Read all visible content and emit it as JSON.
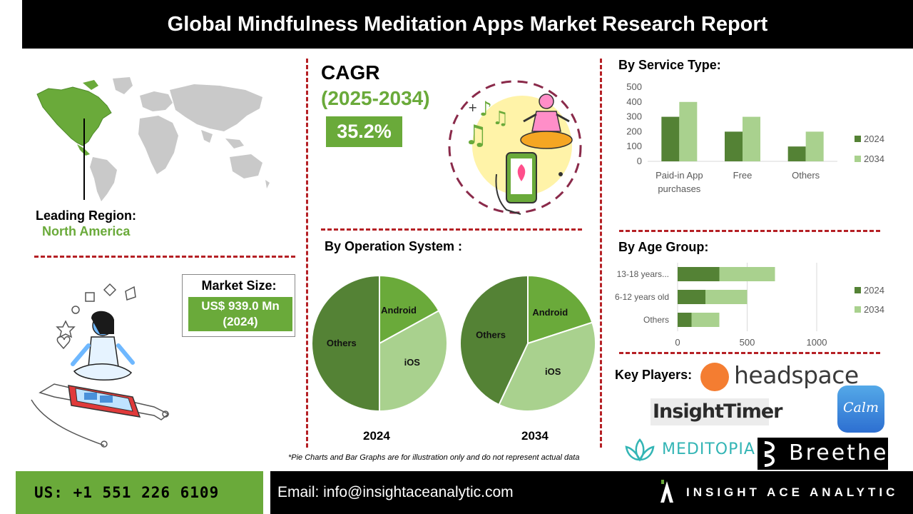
{
  "header": {
    "title": "Global Mindfulness Meditation Apps Market Research Report"
  },
  "cagr": {
    "label": "CAGR",
    "period": "(2025-2034)",
    "value": "35.2%"
  },
  "region": {
    "label": "Leading Region:",
    "value": "North America"
  },
  "market_size": {
    "label": "Market Size:",
    "value_line1": "US$ 939.0 Mn",
    "value_line2": "(2024)"
  },
  "sections": {
    "service_type": "By Service Type:",
    "operation_system": "By Operation System :",
    "age_group": "By Age Group:",
    "key_players": "Key Players:"
  },
  "note": "*Pie Charts and Bar Graphs are for illustration only and do not represent actual data",
  "footer": {
    "phone": "US: +1 551 226 6109",
    "email": "Email: info@insightaceanalytic.com",
    "brand": "INSIGHT ACE ANALYTIC"
  },
  "key_players": {
    "headspace": "headspace",
    "insight_timer": "InsightTimer",
    "calm": "Calm",
    "meditopia": "MEDITOPIA",
    "breethe": "Breethe"
  },
  "colors": {
    "dark_green": "#548235",
    "light_green": "#a9d18e",
    "accent_green": "#6aaa3a",
    "divider_red": "#b52025"
  },
  "chart_data": [
    {
      "type": "bar",
      "id": "service_type",
      "orientation": "vertical",
      "categories": [
        "Paid-in App purchases",
        "Free",
        "Others"
      ],
      "category_lines": [
        [
          "Paid-in App",
          "purchases"
        ],
        [
          "Free"
        ],
        [
          "Others"
        ]
      ],
      "series": [
        {
          "name": "2024",
          "values": [
            300,
            200,
            100
          ],
          "color": "#548235"
        },
        {
          "name": "2034",
          "values": [
            400,
            300,
            200
          ],
          "color": "#a9d18e"
        }
      ],
      "yticks": [
        0,
        100,
        200,
        300,
        400,
        500
      ],
      "ylim": [
        0,
        500
      ],
      "legend": "right"
    },
    {
      "type": "bar",
      "id": "age_group",
      "orientation": "horizontal-stacked",
      "categories": [
        "13-18 years...",
        "6-12 years old",
        "Others"
      ],
      "series": [
        {
          "name": "2024",
          "values": [
            300,
            200,
            100
          ],
          "color": "#548235"
        },
        {
          "name": "2034",
          "values": [
            400,
            300,
            200
          ],
          "color": "#a9d18e"
        }
      ],
      "xticks": [
        0,
        500,
        1000
      ],
      "xlim": [
        0,
        1000
      ],
      "legend": "right"
    },
    {
      "type": "pie",
      "id": "os_2024",
      "title": "2024",
      "slices": [
        {
          "label": "Android",
          "value": 17,
          "color": "#6aaa3a"
        },
        {
          "label": "iOS",
          "value": 33,
          "color": "#a9d18e"
        },
        {
          "label": "Others",
          "value": 50,
          "color": "#548235"
        }
      ]
    },
    {
      "type": "pie",
      "id": "os_2034",
      "title": "2034",
      "slices": [
        {
          "label": "Android",
          "value": 20,
          "color": "#6aaa3a"
        },
        {
          "label": "iOS",
          "value": 37,
          "color": "#a9d18e"
        },
        {
          "label": "Others",
          "value": 43,
          "color": "#548235"
        }
      ]
    }
  ]
}
